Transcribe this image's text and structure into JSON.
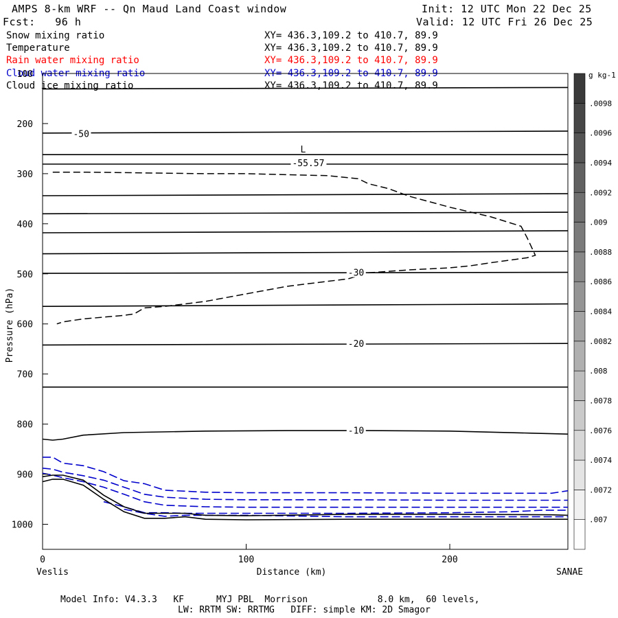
{
  "header": {
    "title": "AMPS 8-km WRF -- Qn Maud Land Coast window",
    "init": "Init: 12 UTC Mon 22 Dec 25",
    "fcst": "Fcst:   96 h",
    "valid": "Valid: 12 UTC Fri 26 Dec 25"
  },
  "fields": [
    {
      "name": "Snow mixing ratio",
      "xy": "XY= 436.3,109.2 to 410.7, 89.9",
      "color": "#000000"
    },
    {
      "name": "Temperature",
      "xy": "XY= 436.3,109.2 to 410.7, 89.9",
      "color": "#000000"
    },
    {
      "name": "Rain water mixing ratio",
      "xy": "XY= 436.3,109.2 to 410.7, 89.9",
      "color": "#ff0000"
    },
    {
      "name": "Cloud water mixing ratio",
      "xy": "XY= 436.3,109.2 to 410.7, 89.9",
      "color": "#0000cc"
    },
    {
      "name": "Cloud ice mixing ratio",
      "xy": "XY= 436.3,109.2 to 410.7, 89.9",
      "color": "#000000"
    }
  ],
  "footer": {
    "line1": "Model Info: V4.3.3   KF      MYJ PBL  Morrison             8.0 km,  60 levels,",
    "line2": "LW: RRTM SW: RRTMG   DIFF: simple KM: 2D Smagor"
  },
  "chart_data": {
    "type": "line",
    "xlabel": "Distance (km)",
    "ylabel": "Pressure (hPa)",
    "xlim": [
      0,
      258
    ],
    "ylim": [
      1050,
      100
    ],
    "x_ticks": [
      0,
      100,
      200
    ],
    "y_ticks": [
      100,
      200,
      300,
      400,
      500,
      600,
      700,
      800,
      900,
      1000
    ],
    "endpoints": {
      "left": "Veslis",
      "right": "SANAE"
    },
    "temperature_isotherms": [
      {
        "x": [
          0,
          258
        ],
        "y": [
          131,
          128
        ]
      },
      {
        "x": [
          0,
          258
        ],
        "y": [
          219,
          215
        ]
      },
      {
        "x": [
          0,
          258
        ],
        "y": [
          262,
          262
        ]
      },
      {
        "x": [
          0,
          258
        ],
        "y": [
          281,
          281
        ]
      },
      {
        "x": [
          0,
          258
        ],
        "y": [
          344,
          340
        ]
      },
      {
        "x": [
          0,
          258
        ],
        "y": [
          380,
          377
        ]
      },
      {
        "x": [
          0,
          258
        ],
        "y": [
          418,
          414
        ]
      },
      {
        "x": [
          0,
          258
        ],
        "y": [
          460,
          455
        ]
      },
      {
        "x": [
          0,
          258
        ],
        "y": [
          499,
          497
        ]
      },
      {
        "x": [
          0,
          258
        ],
        "y": [
          565,
          560
        ]
      },
      {
        "x": [
          0,
          258
        ],
        "y": [
          642,
          639
        ]
      },
      {
        "x": [
          0,
          258
        ],
        "y": [
          726,
          726
        ]
      },
      {
        "x": [
          0,
          5,
          10,
          20,
          40,
          80,
          120,
          160,
          200,
          240,
          258
        ],
        "y": [
          830,
          832,
          830,
          822,
          817,
          814,
          813,
          813,
          814,
          818,
          820
        ]
      }
    ],
    "contour_labels": [
      {
        "text": "-50",
        "x": 15,
        "y": 220
      },
      {
        "text": "-30",
        "x": 150,
        "y": 497
      },
      {
        "text": "-20",
        "x": 150,
        "y": 639
      },
      {
        "text": "-10",
        "x": 150,
        "y": 812
      }
    ],
    "low_marker": {
      "symbol": "L",
      "value": "-55.57",
      "x": 130,
      "y": 262
    },
    "snow_mixing_ratio_contour": {
      "x": [
        5,
        10,
        20,
        40,
        60,
        80,
        100,
        120,
        140,
        155,
        160,
        170,
        180,
        200,
        220,
        235,
        238,
        242,
        238,
        220,
        210,
        200,
        180,
        160,
        150,
        140,
        120,
        100,
        80,
        60,
        50,
        45,
        40,
        20,
        10,
        7
      ],
      "y": [
        297,
        297,
        297,
        298,
        299,
        300,
        300,
        302,
        304,
        310,
        320,
        330,
        345,
        367,
        386,
        405,
        428,
        463,
        468,
        478,
        484,
        488,
        492,
        498,
        510,
        515,
        525,
        540,
        555,
        565,
        568,
        580,
        583,
        590,
        596,
        600
      ]
    },
    "cloud_water_contours": [
      {
        "x": [
          0,
          5,
          10,
          20,
          30,
          40,
          50,
          60,
          80,
          100,
          150,
          200,
          250,
          258
        ],
        "y": [
          866,
          866,
          878,
          883,
          895,
          913,
          919,
          932,
          936,
          937,
          937,
          938,
          938,
          933
        ]
      },
      {
        "x": [
          0,
          5,
          10,
          20,
          30,
          40,
          50,
          60,
          80,
          100,
          150,
          200,
          258
        ],
        "y": [
          888,
          890,
          896,
          903,
          912,
          926,
          940,
          946,
          950,
          951,
          951,
          952,
          952
        ]
      },
      {
        "x": [
          0,
          5,
          10,
          20,
          30,
          40,
          50,
          60,
          80,
          100,
          150,
          200,
          258
        ],
        "y": [
          898,
          902,
          907,
          915,
          926,
          940,
          955,
          962,
          965,
          966,
          966,
          966,
          966
        ]
      },
      {
        "x": [
          30,
          40,
          50,
          60,
          70,
          80,
          100,
          150,
          200,
          230,
          245,
          258
        ],
        "y": [
          955,
          965,
          977,
          977,
          978,
          978,
          978,
          978,
          977,
          975,
          972,
          972
        ]
      },
      {
        "x": [
          40,
          50,
          60,
          70,
          80,
          100,
          150,
          200,
          258
        ],
        "y": [
          970,
          978,
          984,
          982,
          982,
          982,
          985,
          985,
          985
        ]
      }
    ],
    "ground_snow_contours": [
      {
        "x": [
          0,
          5,
          10,
          20,
          30,
          40,
          50,
          60,
          70,
          80,
          100,
          150,
          200,
          250,
          258
        ],
        "y": [
          905,
          902,
          902,
          912,
          942,
          965,
          978,
          978,
          978,
          982,
          983,
          980,
          980,
          981,
          982
        ]
      },
      {
        "x": [
          0,
          5,
          10,
          20,
          30,
          40,
          50,
          60,
          70,
          80,
          100,
          150,
          200,
          258
        ],
        "y": [
          915,
          910,
          910,
          922,
          950,
          975,
          988,
          988,
          985,
          990,
          991,
          990,
          990,
          990
        ]
      }
    ],
    "colorbar": {
      "unit": "g kg-1",
      "tick_labels": [
        ".007",
        ".0072",
        ".0074",
        ".0076",
        ".0078",
        ".008",
        ".0082",
        ".0084",
        ".0086",
        ".0088",
        ".009",
        ".0092",
        ".0094",
        ".0096",
        ".0098"
      ],
      "low_color": "#fefefe",
      "high_color": "#3a3a3a"
    }
  }
}
